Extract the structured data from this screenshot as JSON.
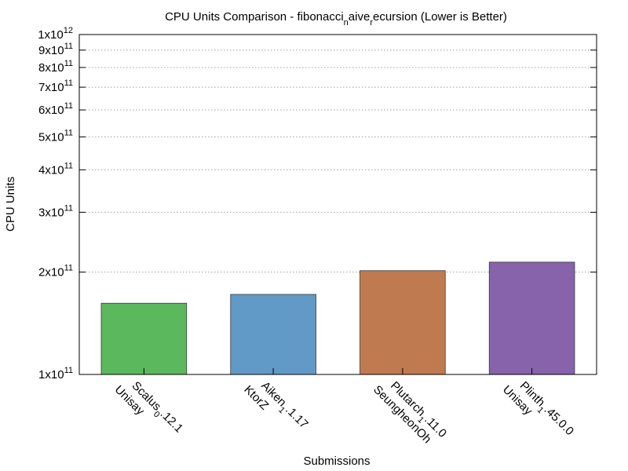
{
  "chart_data": {
    "type": "bar",
    "title_parts": [
      {
        "text": "CPU Units Comparison - fibonacci",
        "style": "normal"
      },
      {
        "text": "n",
        "style": "sub"
      },
      {
        "text": "aive",
        "style": "normal"
      },
      {
        "text": "r",
        "style": "sub"
      },
      {
        "text": "ecursion (Lower is Better)",
        "style": "normal"
      }
    ],
    "xlabel": "Submissions",
    "ylabel": "CPU Units",
    "yscale": "log",
    "ylim": [
      100000000000,
      1000000000000
    ],
    "grid": "y-dotted",
    "yticks": [
      {
        "value": 100000000000,
        "mantissa": "1x10",
        "exponent": "11"
      },
      {
        "value": 200000000000,
        "mantissa": "2x10",
        "exponent": "11"
      },
      {
        "value": 300000000000,
        "mantissa": "3x10",
        "exponent": "11"
      },
      {
        "value": 400000000000,
        "mantissa": "4x10",
        "exponent": "11"
      },
      {
        "value": 500000000000,
        "mantissa": "5x10",
        "exponent": "11"
      },
      {
        "value": 600000000000,
        "mantissa": "6x10",
        "exponent": "11"
      },
      {
        "value": 700000000000,
        "mantissa": "7x10",
        "exponent": "11"
      },
      {
        "value": 800000000000,
        "mantissa": "8x10",
        "exponent": "11"
      },
      {
        "value": 900000000000,
        "mantissa": "9x10",
        "exponent": "11"
      },
      {
        "value": 1000000000000,
        "mantissa": "1x10",
        "exponent": "12"
      }
    ],
    "categories": [
      {
        "line1_parts": [
          {
            "text": "Scalus",
            "style": "normal"
          },
          {
            "text": "0",
            "style": "sub"
          },
          {
            "text": ".12.1",
            "style": "normal"
          }
        ],
        "line2": "Unisay"
      },
      {
        "line1_parts": [
          {
            "text": "Aiken",
            "style": "normal"
          },
          {
            "text": "1",
            "style": "sub"
          },
          {
            "text": ".1.17",
            "style": "normal"
          }
        ],
        "line2": "KtorZ"
      },
      {
        "line1_parts": [
          {
            "text": "Plutarch",
            "style": "normal"
          },
          {
            "text": "1",
            "style": "sub"
          },
          {
            "text": ".11.0",
            "style": "normal"
          }
        ],
        "line2": "SeungheonOh"
      },
      {
        "line1_parts": [
          {
            "text": "Plinth",
            "style": "normal"
          },
          {
            "text": "1",
            "style": "sub"
          },
          {
            "text": ".45.0.0",
            "style": "normal"
          }
        ],
        "line2": "Unisay"
      }
    ],
    "values": [
      162000000000,
      172000000000,
      202000000000,
      214000000000
    ],
    "colors": [
      "#5cb85c",
      "#6199c7",
      "#c07a50",
      "#8763ab"
    ]
  }
}
